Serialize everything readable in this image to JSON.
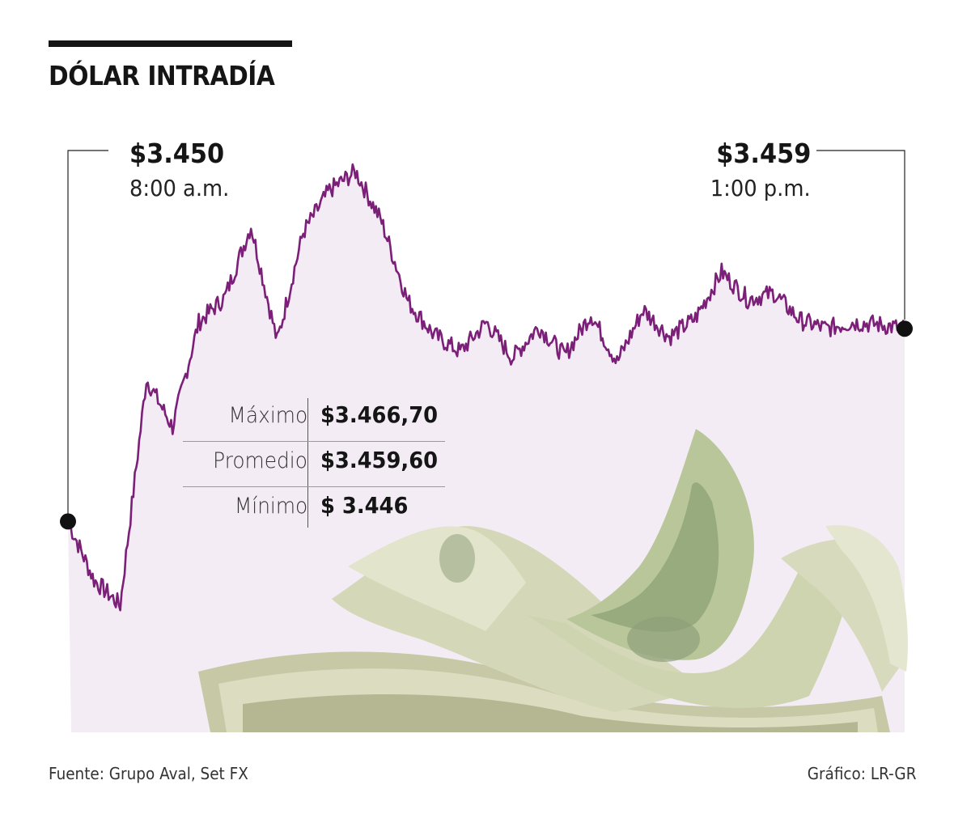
{
  "title": "DÓLAR INTRADÍA",
  "start": {
    "value": "$3.450",
    "time": "8:00 a.m."
  },
  "end": {
    "value": "$3.459",
    "time": "1:00 p.m."
  },
  "stats": [
    {
      "label": "Máximo",
      "value": "$3.466,70"
    },
    {
      "label": "Promedio",
      "value": "$3.459,60"
    },
    {
      "label": "Mínimo",
      "value": "$ 3.446"
    }
  ],
  "footer": {
    "source": "Fuente: Grupo Aval, Set FX",
    "credit": "Gráfico: LR-GR"
  },
  "colors": {
    "line": "#7b1f78",
    "area": "#f3ecf5",
    "marker": "#111111"
  },
  "illustration": "stack-of-100-dollar-bills",
  "chart_data": {
    "type": "line",
    "xlim": [
      "8:00 a.m.",
      "1:00 p.m."
    ],
    "ylim": [
      3446,
      3466.7
    ],
    "grid": false,
    "legend": "none",
    "series": [
      {
        "x": [
          "8:00 a.m.",
          "8:05 a.m.",
          "8:10 a.m.",
          "8:15 a.m.",
          "8:20 a.m.",
          "8:30 a.m.",
          "8:40 a.m.",
          "8:50 a.m.",
          "9:00 a.m.",
          "9:10 a.m.",
          "9:20 a.m.",
          "9:30 a.m.",
          "9:40 a.m.",
          "9:50 a.m.",
          "10:00 a.m.",
          "10:10 a.m.",
          "10:20 a.m.",
          "10:30 a.m.",
          "10:40 a.m.",
          "10:50 a.m.",
          "11:00 a.m.",
          "11:10 a.m.",
          "11:20 a.m.",
          "11:30 a.m.",
          "11:40 a.m.",
          "11:50 a.m.",
          "12:00 p.m.",
          "12:10 p.m.",
          "12:20 p.m.",
          "12:30 p.m.",
          "12:40 p.m.",
          "12:50 p.m.",
          "1:00 p.m."
        ],
        "values": [
          3450,
          3447.2,
          3446,
          3456.8,
          3454.5,
          3459.5,
          3460.7,
          3464.1,
          3458.6,
          3463.8,
          3465.8,
          3466.7,
          3464.3,
          3460.5,
          3458.9,
          3458.1,
          3459.5,
          3457.8,
          3459.3,
          3457.9,
          3459.9,
          3457.6,
          3460.1,
          3458.8,
          3459.7,
          3461.9,
          3460.6,
          3460.9,
          3459.6,
          3459.2,
          3459.5,
          3459.4,
          3459.2
        ]
      }
    ]
  }
}
